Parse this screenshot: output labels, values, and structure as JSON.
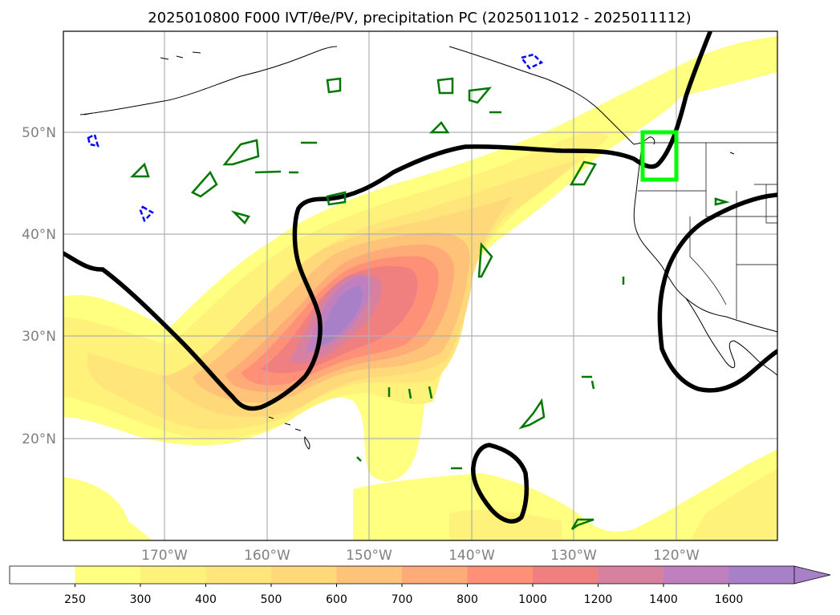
{
  "title": "2025010800 F000 IVT/θe/PV, precipitation PC (2025011012 - 2025011112)",
  "map": {
    "lon_labels": [
      "170°W",
      "160°W",
      "150°W",
      "140°W",
      "130°W",
      "120°W"
    ],
    "lat_labels": [
      "50°N",
      "40°N",
      "30°N",
      "20°N"
    ],
    "colors": {
      "ivt_shading": [
        "#ffff80",
        "#fff27a",
        "#ffe57a",
        "#ffd87a",
        "#ffc279",
        "#ffab78",
        "#ff9078",
        "#f08080",
        "#d880a0",
        "#c080c0",
        "#a880c8"
      ],
      "pv_contour": "#007700",
      "theta_contour": "#000000",
      "region_box": "#00ff00",
      "neg_contour": "#0000ff"
    }
  },
  "colorbar": {
    "labels": [
      "250",
      "300",
      "400",
      "500",
      "600",
      "700",
      "800",
      "1000",
      "1200",
      "1400",
      "1600"
    ],
    "colors": [
      "#ffffff",
      "#ffff80",
      "#fff27a",
      "#ffe57a",
      "#ffd87a",
      "#ffc279",
      "#ffab78",
      "#ff9078",
      "#f08080",
      "#d880a0",
      "#c080c0",
      "#a880c8"
    ]
  }
}
